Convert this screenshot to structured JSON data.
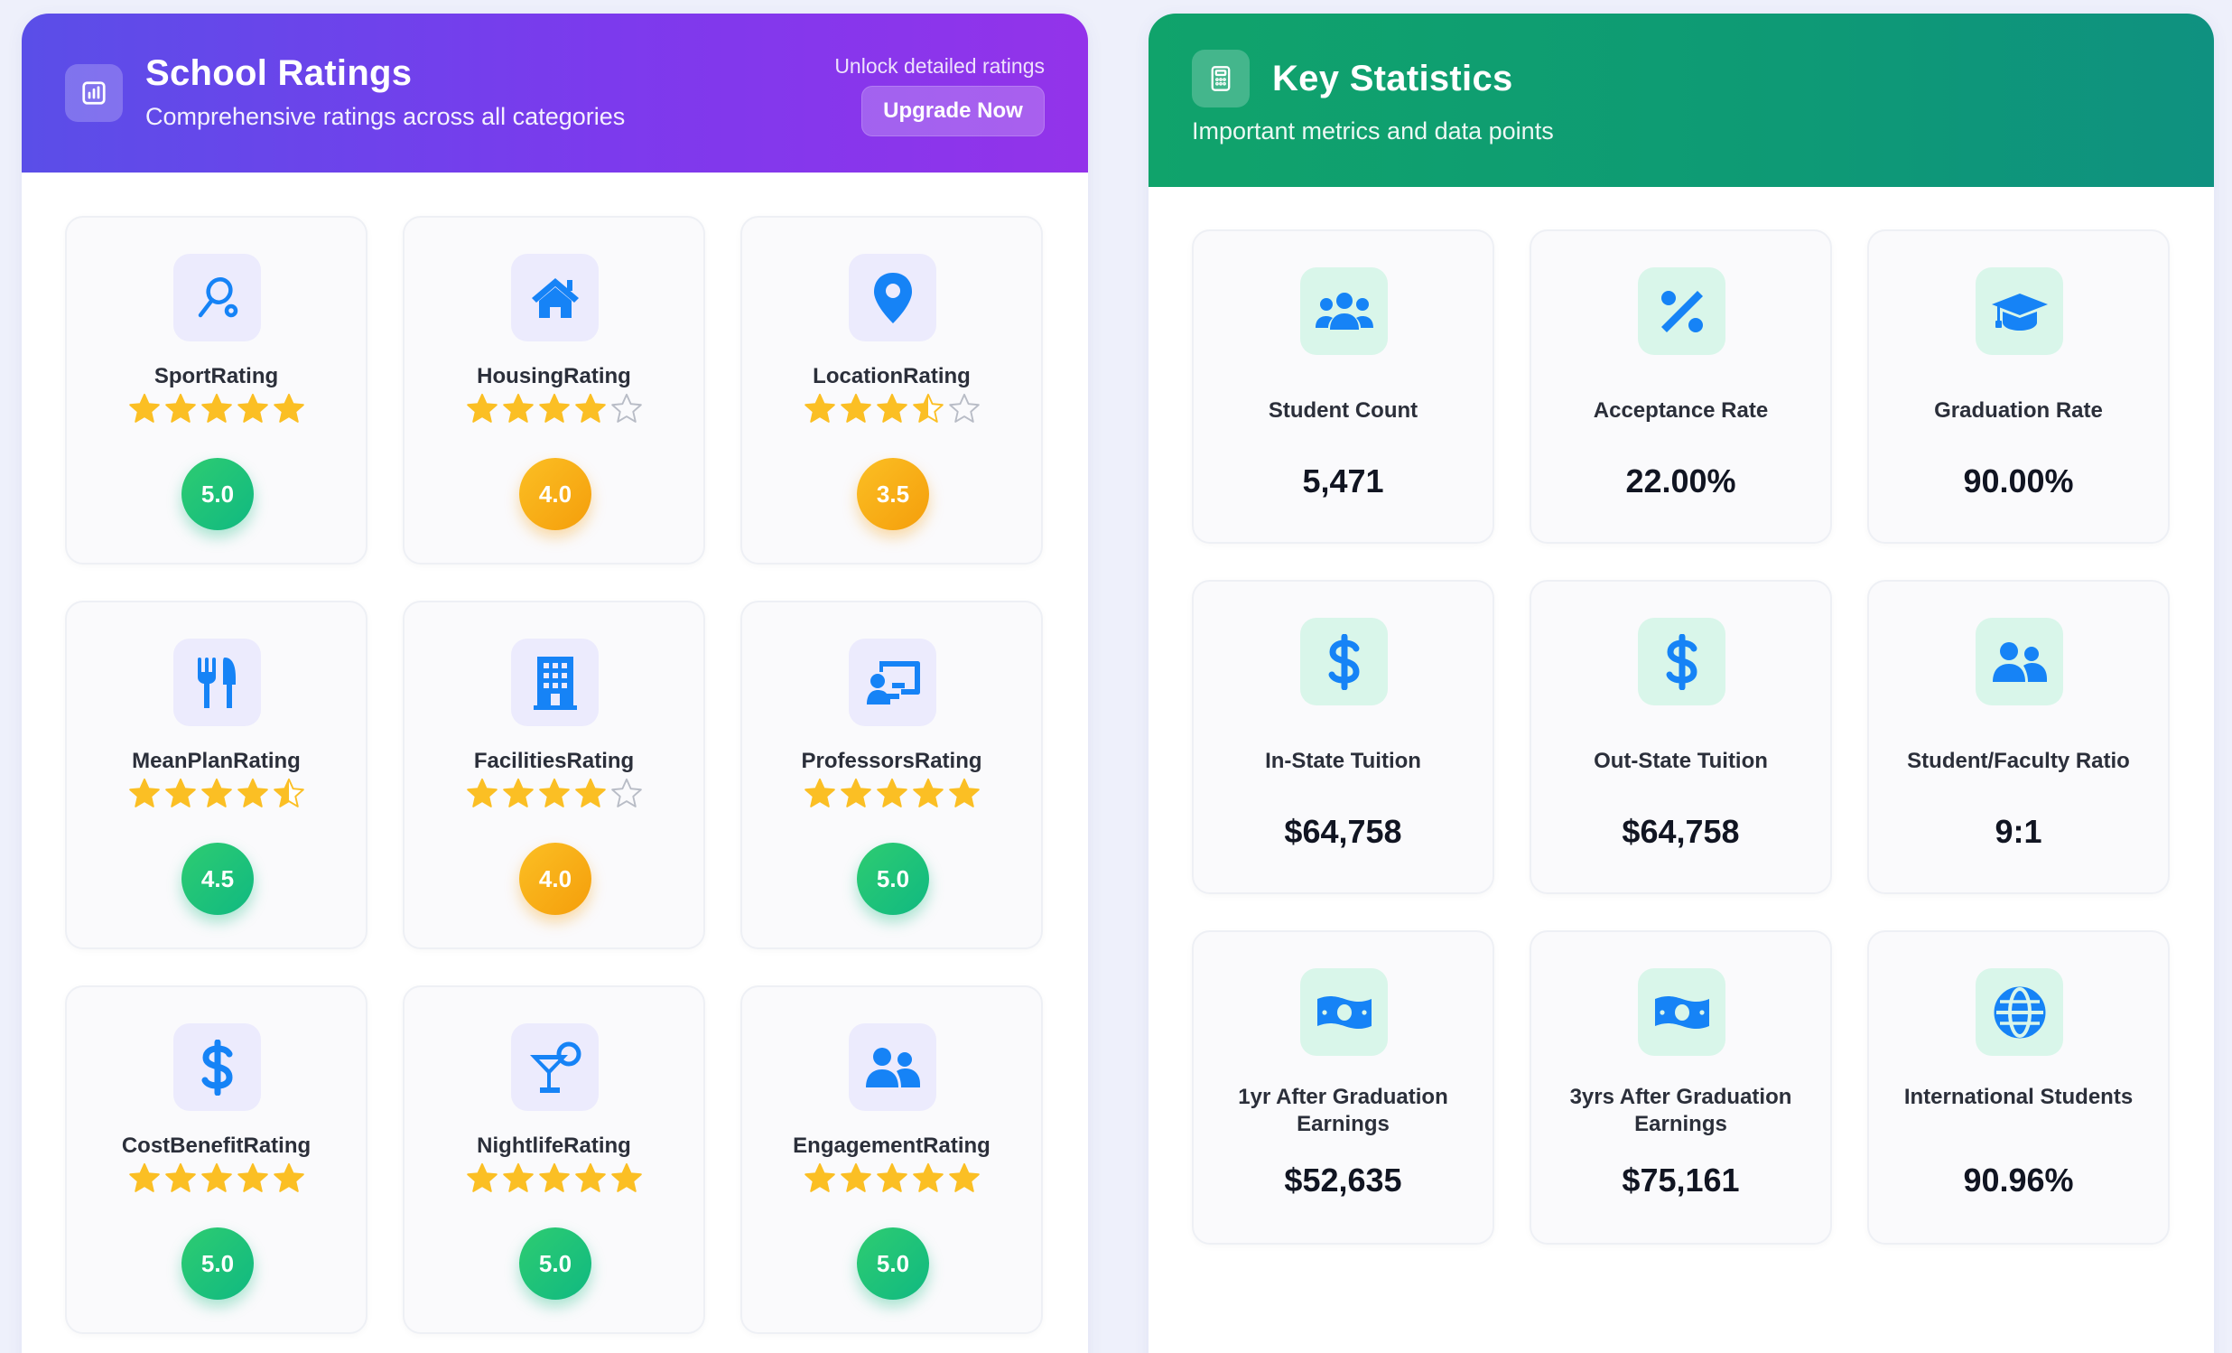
{
  "ratings_panel": {
    "title": "School Ratings",
    "subtitle": "Comprehensive ratings across all categories",
    "unlock_text": "Unlock detailed ratings",
    "upgrade_label": "Upgrade Now",
    "header_icon": "bar-chart-icon",
    "colors": {
      "header_start": "#5a4ee8",
      "header_end": "#9333ea",
      "star": "#fbbf24",
      "icon": "#1683f6"
    },
    "cards": [
      {
        "name": "SportRating",
        "icon": "tennis-racket-icon",
        "rating": 5.0,
        "score_label": "5.0",
        "badge": "green"
      },
      {
        "name": "HousingRating",
        "icon": "house-icon",
        "rating": 4.0,
        "score_label": "4.0",
        "badge": "orange"
      },
      {
        "name": "LocationRating",
        "icon": "map-pin-icon",
        "rating": 3.5,
        "score_label": "3.5",
        "badge": "orange"
      },
      {
        "name": "MeanPlanRating",
        "icon": "utensils-icon",
        "rating": 4.5,
        "score_label": "4.5",
        "badge": "green"
      },
      {
        "name": "FacilitiesRating",
        "icon": "building-icon",
        "rating": 4.0,
        "score_label": "4.0",
        "badge": "orange"
      },
      {
        "name": "ProfessorsRating",
        "icon": "teacher-board-icon",
        "rating": 5.0,
        "score_label": "5.0",
        "badge": "green"
      },
      {
        "name": "CostBenefitRating",
        "icon": "dollar-icon",
        "rating": 5.0,
        "score_label": "5.0",
        "badge": "green"
      },
      {
        "name": "NightlifeRating",
        "icon": "cocktail-icon",
        "rating": 5.0,
        "score_label": "5.0",
        "badge": "green"
      },
      {
        "name": "EngagementRating",
        "icon": "users-icon",
        "rating": 5.0,
        "score_label": "5.0",
        "badge": "green"
      }
    ]
  },
  "stats_panel": {
    "title": "Key Statistics",
    "subtitle": "Important metrics and data points",
    "header_icon": "calculator-icon",
    "colors": {
      "header_start": "#10a36b",
      "header_end": "#0f9180",
      "icon": "#1683f6"
    },
    "cards": [
      {
        "label": "Student Count",
        "value": "5,471",
        "icon": "users-group-icon"
      },
      {
        "label": "Acceptance Rate",
        "value": "22.00%",
        "icon": "percent-icon"
      },
      {
        "label": "Graduation Rate",
        "value": "90.00%",
        "icon": "graduation-cap-icon"
      },
      {
        "label": "In-State Tuition",
        "value": "$64,758",
        "icon": "dollar-icon"
      },
      {
        "label": "Out-State Tuition",
        "value": "$64,758",
        "icon": "dollar-icon"
      },
      {
        "label": "Student/Faculty Ratio",
        "value": "9:1",
        "icon": "user-friends-icon"
      },
      {
        "label": "1yr After Graduation Earnings",
        "value": "$52,635",
        "icon": "money-bill-icon"
      },
      {
        "label": "3yrs After Graduation Earnings",
        "value": "$75,161",
        "icon": "money-bill-icon"
      },
      {
        "label": "International Students",
        "value": "90.96%",
        "icon": "globe-icon"
      }
    ]
  }
}
